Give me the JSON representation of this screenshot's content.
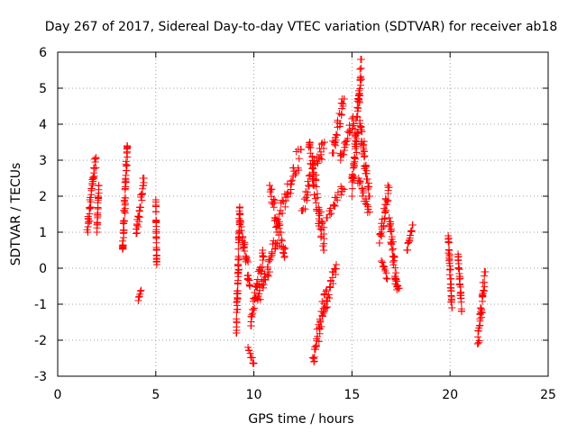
{
  "chart_data": {
    "type": "scatter",
    "title": "Day 267 of 2017, Sidereal Day-to-day VTEC variation (SDTVAR) for receiver ab18",
    "xlabel": "GPS time / hours",
    "ylabel": "SDTVAR / TECUs",
    "xlim": [
      0,
      25
    ],
    "ylim": [
      -3,
      6
    ],
    "xticks": [
      0,
      5,
      10,
      15,
      20,
      25
    ],
    "yticks": [
      -3,
      -2,
      -1,
      0,
      1,
      2,
      3,
      4,
      5,
      6
    ],
    "grid": true,
    "marker": "+",
    "marker_color": "#ff0000",
    "series": [
      {
        "name": "SDTVAR",
        "segments": [
          {
            "x": [
              1.5,
              1.95
            ],
            "y": [
              1.0,
              3.1
            ]
          },
          {
            "x": [
              2.0,
              2.1
            ],
            "y": [
              1.0,
              2.3
            ]
          },
          {
            "x": [
              3.3,
              3.55
            ],
            "y": [
              0.4,
              3.4
            ]
          },
          {
            "x": [
              4.0,
              4.4
            ],
            "y": [
              0.9,
              2.5
            ]
          },
          {
            "x": [
              4.1,
              4.25
            ],
            "y": [
              -0.9,
              -0.6
            ]
          },
          {
            "x": [
              5.0,
              5.05
            ],
            "y": [
              0.1,
              1.9
            ]
          },
          {
            "x": [
              9.1,
              9.3
            ],
            "y": [
              -1.8,
              1.7
            ]
          },
          {
            "x": [
              9.3,
              9.8
            ],
            "y": [
              -0.5,
              1.3
            ]
          },
          {
            "x": [
              9.7,
              10.0
            ],
            "y": [
              -2.7,
              -2.2
            ]
          },
          {
            "x": [
              9.8,
              10.5
            ],
            "y": [
              -1.6,
              0.5
            ]
          },
          {
            "x": [
              10.2,
              11.2
            ],
            "y": [
              -1.0,
              1.0
            ]
          },
          {
            "x": [
              10.8,
              11.6
            ],
            "y": [
              0.3,
              2.3
            ]
          },
          {
            "x": [
              11.2,
              12.4
            ],
            "y": [
              1.2,
              3.3
            ]
          },
          {
            "x": [
              12.4,
              13.6
            ],
            "y": [
              1.6,
              3.5
            ]
          },
          {
            "x": [
              12.8,
              13.6
            ],
            "y": [
              0.5,
              3.5
            ]
          },
          {
            "x": [
              13.0,
              13.7
            ],
            "y": [
              -2.6,
              -0.6
            ]
          },
          {
            "x": [
              13.6,
              14.2
            ],
            "y": [
              -1.2,
              0.1
            ]
          },
          {
            "x": [
              13.7,
              14.6
            ],
            "y": [
              1.4,
              2.3
            ]
          },
          {
            "x": [
              14.0,
              14.6
            ],
            "y": [
              3.2,
              4.7
            ]
          },
          {
            "x": [
              14.4,
              15.1
            ],
            "y": [
              3.0,
              4.2
            ]
          },
          {
            "x": [
              15.0,
              15.5
            ],
            "y": [
              2.0,
              5.8
            ]
          },
          {
            "x": [
              15.4,
              15.9
            ],
            "y": [
              2.0,
              4.1
            ]
          },
          {
            "x": [
              15.3,
              15.9
            ],
            "y": [
              1.5,
              2.5
            ]
          },
          {
            "x": [
              16.4,
              16.9
            ],
            "y": [
              0.7,
              2.3
            ]
          },
          {
            "x": [
              16.5,
              16.8
            ],
            "y": [
              -0.3,
              0.2
            ]
          },
          {
            "x": [
              16.9,
              17.3
            ],
            "y": [
              -0.6,
              1.4
            ]
          },
          {
            "x": [
              17.2,
              17.4
            ],
            "y": [
              -0.6,
              -0.2
            ]
          },
          {
            "x": [
              17.8,
              18.1
            ],
            "y": [
              0.5,
              1.2
            ]
          },
          {
            "x": [
              19.9,
              20.1
            ],
            "y": [
              -1.1,
              0.9
            ]
          },
          {
            "x": [
              20.4,
              20.6
            ],
            "y": [
              -1.2,
              0.4
            ]
          },
          {
            "x": [
              21.4,
              21.8
            ],
            "y": [
              -2.1,
              -0.1
            ]
          }
        ]
      }
    ]
  }
}
